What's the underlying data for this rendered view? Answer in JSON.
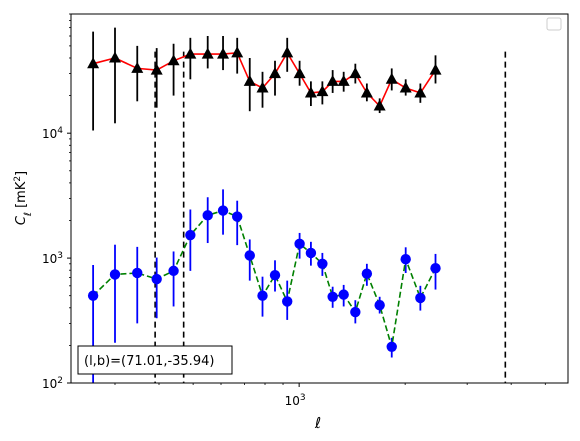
{
  "chart_data": {
    "type": "scatter",
    "title": "",
    "xlabel": "ℓ",
    "ylabel": "C_ℓ [mK²]",
    "xscale": "log",
    "yscale": "log",
    "xlim": [
      225,
      5800
    ],
    "ylim": [
      100,
      90000
    ],
    "x_ticks": [
      {
        "value": 1000,
        "label": "10^3"
      }
    ],
    "y_ticks": [
      {
        "value": 100,
        "label": "10^2"
      },
      {
        "value": 1000,
        "label": "10^3"
      },
      {
        "value": 10000,
        "label": "10^4"
      }
    ],
    "grid": false,
    "legend": {
      "position": "top-right",
      "entries": []
    },
    "annotation": "(l,b)=(71.01,-35.94)",
    "vlines": [
      390,
      470,
      3850
    ],
    "x": [
      260,
      300,
      347,
      394,
      440,
      491,
      550,
      608,
      667,
      724,
      787,
      854,
      925,
      1003,
      1080,
      1164,
      1245,
      1338,
      1444,
      1557,
      1693,
      1832,
      2007,
      2209,
      2439,
      2686,
      2994,
      3322,
      3702,
      4179,
      4685,
      5226
    ],
    "series": [
      {
        "color": "#000000",
        "line_color": "#ff0000",
        "line_style": "solid",
        "marker": "triangle",
        "values": [
          36000,
          40000,
          33000,
          32000,
          38000,
          43000,
          43000,
          43000,
          44000,
          26000,
          23000,
          30000,
          44000,
          30000,
          21000,
          21500,
          26000,
          26000,
          30000,
          21000,
          16500,
          27000,
          23000,
          21000,
          32000
        ],
        "x_index_start": 0,
        "x_index_step": 1,
        "err_low": [
          10500,
          12000,
          18000,
          16000,
          20000,
          27000,
          33000,
          32000,
          30000,
          15000,
          16000,
          20000,
          31000,
          24000,
          16500,
          17000,
          21000,
          21500,
          25000,
          18000,
          14500,
          22000,
          20000,
          17500,
          25000
        ],
        "err_high": [
          65000,
          70000,
          50000,
          48000,
          52000,
          58000,
          60000,
          60000,
          58000,
          40000,
          31000,
          38000,
          58000,
          38000,
          26000,
          26000,
          32000,
          31000,
          36000,
          25000,
          19000,
          33000,
          27000,
          25000,
          42000
        ]
      },
      {
        "color": "#0000ff",
        "line_color": "#008000",
        "line_style": "dashed",
        "marker": "circle",
        "values": [
          500,
          740,
          760,
          680,
          790,
          1530,
          2200,
          2400,
          2150,
          1050,
          500,
          730,
          450,
          1300,
          1100,
          900,
          490,
          510,
          370,
          750,
          420,
          195,
          980,
          480,
          830
        ],
        "err_low": [
          100,
          210,
          300,
          330,
          410,
          790,
          1320,
          1540,
          1270,
          660,
          340,
          540,
          320,
          990,
          870,
          720,
          400,
          410,
          300,
          600,
          360,
          160,
          760,
          380,
          560
        ],
        "err_high": [
          880,
          1280,
          1230,
          1010,
          1130,
          2450,
          3070,
          3550,
          2880,
          1410,
          710,
          960,
          660,
          1590,
          1350,
          1100,
          590,
          610,
          460,
          900,
          490,
          230,
          1220,
          600,
          1080
        ]
      }
    ]
  }
}
